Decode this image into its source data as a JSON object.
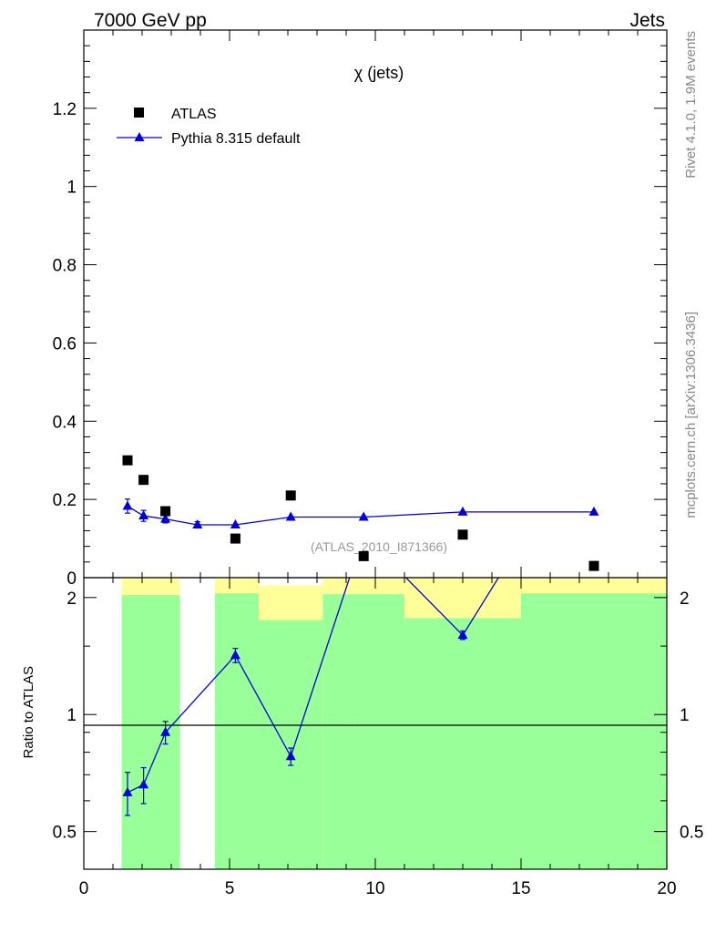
{
  "header": {
    "left_title": "7000 GeV pp",
    "right_title": "Jets"
  },
  "side": {
    "rivet": "Rivet 4.1.0,  1.9M events",
    "site": "mcplots.cern.ch [arXiv:1306.3436]"
  },
  "chart_data": [
    {
      "type": "scatter",
      "title": "χ (jets)",
      "watermark": "(ATLAS_2010_I871366)",
      "xlim": [
        0,
        20
      ],
      "ylim": [
        0,
        1.4
      ],
      "yticks": [
        0,
        0.2,
        0.4,
        0.6,
        0.8,
        1,
        1.2
      ],
      "ytick_labels": [
        "0",
        "0.2",
        "0.4",
        "0.6",
        "0.8",
        "1",
        "1.2"
      ],
      "legend_position": "top-left",
      "series": [
        {
          "name": "ATLAS",
          "marker": "square",
          "color": "#000000",
          "x": [
            1.5,
            2.05,
            2.8,
            5.2,
            7.1,
            9.6,
            13.0,
            17.5
          ],
          "y": [
            0.3,
            0.25,
            0.17,
            0.1,
            0.21,
            0.055,
            0.11,
            0.03
          ]
        },
        {
          "name": "Pythia 8.315 default",
          "marker": "triangle",
          "color": "#0000dd",
          "x": [
            1.5,
            2.05,
            2.8,
            3.9,
            5.2,
            7.1,
            9.6,
            13.0,
            17.5
          ],
          "y": [
            0.183,
            0.158,
            0.15,
            0.135,
            0.135,
            0.155,
            0.155,
            0.168,
            0.168
          ],
          "err": [
            0.018,
            0.014,
            0.01,
            0.008,
            0.006,
            0.006,
            0.006,
            0.006,
            0.006
          ]
        }
      ]
    },
    {
      "type": "line",
      "ylabel": "Ratio to ATLAS",
      "xlim": [
        0,
        20
      ],
      "ylim": [
        0.4,
        2.25
      ],
      "yscale": "log",
      "xticks": [
        0,
        5,
        10,
        15,
        20
      ],
      "xtick_labels": [
        "0",
        "5",
        "10",
        "15",
        "20"
      ],
      "yticks": [
        0.5,
        1,
        2
      ],
      "ytick_labels": [
        "0.5",
        "1",
        "2"
      ],
      "reference_line": 1,
      "bands": [
        {
          "x0": 1.3,
          "x1": 3.3,
          "inner": 2.03,
          "outer": 2.25
        },
        {
          "x0": 4.5,
          "x1": 6.0,
          "inner": 2.05,
          "outer": 2.25
        },
        {
          "x0": 6.0,
          "x1": 8.2,
          "inner": 1.75,
          "outer": 2.15
        },
        {
          "x0": 8.2,
          "x1": 9.3,
          "inner": 2.04,
          "outer": 2.25
        },
        {
          "x0": 9.3,
          "x1": 11.0,
          "inner": 2.04,
          "outer": 2.25
        },
        {
          "x0": 11.0,
          "x1": 15.0,
          "inner": 1.77,
          "outer": 2.25
        },
        {
          "x0": 15.0,
          "x1": 20.0,
          "inner": 2.05,
          "outer": 2.25
        }
      ],
      "series": [
        {
          "name": "Pythia 8.315 default / ATLAS",
          "color": "#0000dd",
          "x": [
            1.5,
            2.05,
            2.8,
            5.2,
            7.1,
            9.6,
            13.0,
            17.5
          ],
          "y": [
            0.63,
            0.66,
            0.9,
            1.42,
            0.78,
            2.9,
            1.6,
            5.6
          ],
          "err": [
            0.08,
            0.07,
            0.06,
            0.06,
            0.04,
            0.05,
            0.04,
            0.05
          ]
        }
      ]
    }
  ]
}
